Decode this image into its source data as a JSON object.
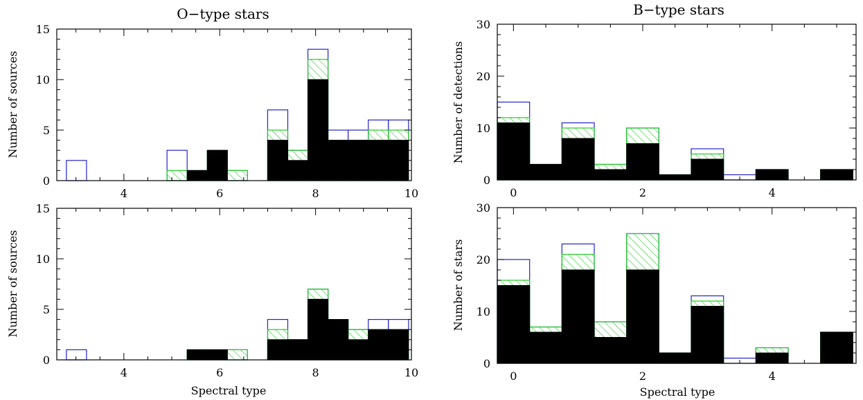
{
  "colors": {
    "outline": "#2222cc",
    "hatch": "#22cc22",
    "solid": "#000000"
  },
  "chart_data": [
    {
      "type": "bar",
      "title": "O−type stars",
      "xlabel": "",
      "ylabel": "Number of sources",
      "xlim": [
        2.6,
        10
      ],
      "ylim": [
        0,
        15
      ],
      "xticks": [
        4,
        6,
        8,
        10
      ],
      "yticks": [
        0,
        5,
        10,
        15
      ],
      "bin_width": 0.42,
      "bin_starts": [
        2.8,
        3.22,
        3.64,
        4.06,
        4.48,
        4.9,
        5.32,
        5.74,
        6.16,
        6.58,
        7.0,
        7.42,
        7.84,
        8.26,
        8.68,
        9.1,
        9.52
      ],
      "series": [
        {
          "name": "",
          "style": "outline",
          "values": [
            2,
            0,
            0,
            0,
            0,
            3,
            1,
            3,
            1,
            0,
            7,
            3,
            13,
            5,
            5,
            6,
            6
          ]
        },
        {
          "name": "",
          "style": "hatched",
          "values": [
            0,
            0,
            0,
            0,
            0,
            1,
            1,
            3,
            1,
            0,
            5,
            3,
            12,
            4,
            4,
            5,
            5
          ]
        },
        {
          "name": "",
          "style": "solid",
          "values": [
            0,
            0,
            0,
            0,
            0,
            0,
            1,
            3,
            0,
            0,
            4,
            2,
            10,
            4,
            4,
            4,
            4
          ]
        }
      ]
    },
    {
      "type": "bar",
      "title": "B−type stars",
      "xlabel": "",
      "ylabel": "Number of detections",
      "xlim": [
        -0.25,
        5.3
      ],
      "ylim": [
        0,
        30
      ],
      "xticks": [
        0,
        2,
        4
      ],
      "yticks": [
        0,
        10,
        20,
        30
      ],
      "bin_width": 0.5,
      "bin_starts": [
        -0.25,
        0.25,
        0.75,
        1.25,
        1.75,
        2.25,
        2.75,
        3.25,
        3.75,
        4.25,
        4.75
      ],
      "series": [
        {
          "name": "",
          "style": "outline",
          "values": [
            15,
            3,
            11,
            3,
            10,
            1,
            6,
            1,
            2,
            0,
            2
          ]
        },
        {
          "name": "",
          "style": "hatched",
          "values": [
            12,
            3,
            10,
            3,
            10,
            1,
            5,
            0,
            2,
            0,
            2
          ]
        },
        {
          "name": "",
          "style": "solid",
          "values": [
            11,
            3,
            8,
            2,
            7,
            1,
            4,
            0,
            2,
            0,
            2
          ]
        }
      ]
    },
    {
      "type": "bar",
      "title": "",
      "xlabel": "Spectral type",
      "ylabel": "Number of sources",
      "xlim": [
        2.6,
        10
      ],
      "ylim": [
        0,
        15
      ],
      "xticks": [
        4,
        6,
        8,
        10
      ],
      "yticks": [
        0,
        5,
        10,
        15
      ],
      "bin_width": 0.42,
      "bin_starts": [
        2.8,
        3.22,
        3.64,
        4.06,
        4.48,
        4.9,
        5.32,
        5.74,
        6.16,
        6.58,
        7.0,
        7.42,
        7.84,
        8.26,
        8.68,
        9.1,
        9.52
      ],
      "series": [
        {
          "name": "",
          "style": "outline",
          "values": [
            1,
            0,
            0,
            0,
            0,
            0,
            1,
            1,
            1,
            0,
            4,
            2,
            7,
            4,
            3,
            4,
            4
          ]
        },
        {
          "name": "",
          "style": "hatched",
          "values": [
            0,
            0,
            0,
            0,
            0,
            0,
            1,
            1,
            1,
            0,
            3,
            2,
            7,
            4,
            3,
            3,
            3
          ]
        },
        {
          "name": "",
          "style": "solid",
          "values": [
            0,
            0,
            0,
            0,
            0,
            0,
            1,
            1,
            0,
            0,
            2,
            2,
            6,
            4,
            2,
            3,
            3
          ]
        }
      ]
    },
    {
      "type": "bar",
      "title": "",
      "xlabel": "Spectral type",
      "ylabel": "Number of stars",
      "xlim": [
        -0.25,
        5.3
      ],
      "ylim": [
        0,
        30
      ],
      "xticks": [
        0,
        2,
        4
      ],
      "yticks": [
        0,
        10,
        20,
        30
      ],
      "bin_width": 0.5,
      "bin_starts": [
        -0.25,
        0.25,
        0.75,
        1.25,
        1.75,
        2.25,
        2.75,
        3.25,
        3.75,
        4.25,
        4.75
      ],
      "series": [
        {
          "name": "",
          "style": "outline",
          "values": [
            20,
            7,
            23,
            8,
            25,
            2,
            13,
            1,
            3,
            0,
            6
          ]
        },
        {
          "name": "",
          "style": "hatched",
          "values": [
            16,
            7,
            21,
            8,
            25,
            2,
            12,
            0,
            3,
            0,
            6
          ]
        },
        {
          "name": "",
          "style": "solid",
          "values": [
            15,
            6,
            18,
            5,
            18,
            2,
            11,
            0,
            2,
            0,
            6
          ]
        }
      ]
    }
  ]
}
